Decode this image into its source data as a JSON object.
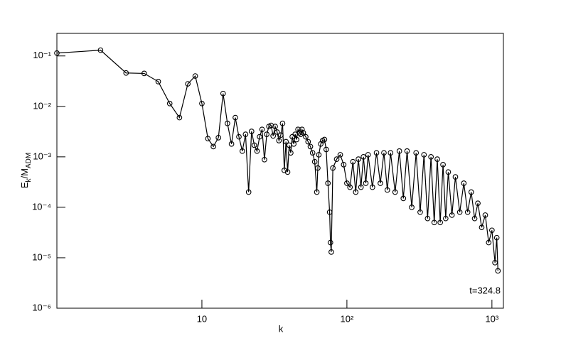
{
  "chart_data": {
    "type": "line",
    "x_label": "k",
    "y_label": {
      "main1": "E",
      "sub1": "k",
      "main2": "/M",
      "sub2": "ADM"
    },
    "annotation": "t=324.8",
    "color": "#000000",
    "log_x": true,
    "log_y": true,
    "marker": "open-circle",
    "x": [
      1,
      2,
      3,
      4,
      5,
      6,
      7,
      8,
      9,
      10,
      11,
      12,
      13,
      14,
      15,
      16,
      17,
      18,
      19,
      20,
      21,
      22,
      23,
      24,
      25,
      26,
      27,
      28,
      29,
      30,
      31,
      32,
      33,
      34,
      35,
      36,
      37,
      38,
      39,
      40,
      41,
      42,
      43,
      44,
      45,
      46,
      47,
      48,
      49,
      50,
      52,
      54,
      56,
      58,
      60,
      62,
      63,
      64,
      66,
      68,
      70,
      72,
      74,
      76,
      77,
      78,
      80,
      85,
      90,
      95,
      100,
      105,
      110,
      115,
      120,
      125,
      130,
      135,
      140,
      150,
      160,
      170,
      180,
      190,
      200,
      215,
      230,
      245,
      260,
      280,
      300,
      320,
      340,
      360,
      380,
      400,
      420,
      440,
      460,
      480,
      500,
      530,
      560,
      600,
      640,
      680,
      720,
      760,
      800,
      850,
      900,
      950,
      1000,
      1050,
      1080,
      1100
    ],
    "values": [
      0.114,
      0.13,
      0.046,
      0.045,
      0.031,
      0.0114,
      0.006,
      0.028,
      0.04,
      0.0114,
      0.0023,
      0.0016,
      0.0024,
      0.018,
      0.0046,
      0.0018,
      0.006,
      0.0025,
      0.0013,
      0.0028,
      0.0002,
      0.0032,
      0.0017,
      0.0013,
      0.0025,
      0.0035,
      0.00088,
      0.0028,
      0.004,
      0.0042,
      0.0026,
      0.004,
      0.0031,
      0.0021,
      0.0027,
      0.0046,
      0.00054,
      0.002,
      0.0005,
      0.0017,
      0.0012,
      0.0025,
      0.0018,
      0.0028,
      0.0022,
      0.0035,
      0.003,
      0.0028,
      0.0035,
      0.003,
      0.0025,
      0.002,
      0.0016,
      0.0012,
      0.0008,
      0.0002,
      0.0006,
      0.0011,
      0.0018,
      0.0021,
      0.0022,
      0.0014,
      0.0003,
      8e-05,
      2e-05,
      1.3e-05,
      0.0006,
      0.0009,
      0.0011,
      0.0007,
      0.0003,
      0.00025,
      0.0008,
      0.0002,
      0.0009,
      0.00025,
      0.001,
      0.0003,
      0.0011,
      0.00025,
      0.0012,
      0.0003,
      0.0012,
      0.00022,
      0.0012,
      0.0002,
      0.0013,
      0.00015,
      0.0013,
      0.0001,
      0.0012,
      8e-05,
      0.0011,
      6e-05,
      0.001,
      5e-05,
      0.0009,
      5e-05,
      0.0007,
      6e-05,
      0.0005,
      7e-05,
      0.0004,
      8e-05,
      0.0003,
      8e-05,
      0.0002,
      6e-05,
      0.00012,
      4e-05,
      7e-05,
      2e-05,
      3.5e-05,
      8e-06,
      2.5e-05,
      5.5e-06
    ],
    "xlim": [
      1,
      1200
    ],
    "ylim": [
      1e-06,
      0.28
    ],
    "xticks": [
      10,
      {
        "value": 100,
        "label": "10²"
      },
      {
        "value": 1000,
        "label": "10³"
      }
    ],
    "yticks": [
      {
        "value": 1e-06,
        "label": "10⁻⁶"
      },
      {
        "value": 1e-05,
        "label": "10⁻⁵"
      },
      {
        "value": 0.0001,
        "label": "10⁻⁴"
      },
      {
        "value": 0.001,
        "label": "10⁻³"
      },
      {
        "value": 0.01,
        "label": "10⁻²"
      },
      {
        "value": 0.1,
        "label": "10⁻¹"
      }
    ]
  }
}
